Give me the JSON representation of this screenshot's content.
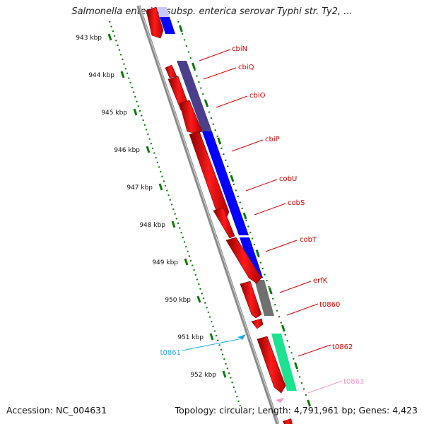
{
  "title": "Salmonella enterica subsp. enterica serovar Typhi str. Ty2, ...",
  "footer": {
    "accession": "Accession: NC_004631",
    "topology": "Topology: circular; Length: 4,791,961 bp; Genes: 4,423"
  },
  "ticks": [
    "943 kbp",
    "944 kbp",
    "945 kbp",
    "946 kbp",
    "947 kbp",
    "948 kbp",
    "949 kbp",
    "950 kbp",
    "951 kbp",
    "952 kbp"
  ],
  "genes": [
    {
      "name": "cbiN",
      "color": "#d40000"
    },
    {
      "name": "cbiQ",
      "color": "#d40000"
    },
    {
      "name": "cbiO",
      "color": "#d40000"
    },
    {
      "name": "cbiP",
      "color": "#d40000"
    },
    {
      "name": "cobU",
      "color": "#d40000"
    },
    {
      "name": "cobS",
      "color": "#d40000"
    },
    {
      "name": "cobT",
      "color": "#d40000"
    },
    {
      "name": "erfK",
      "color": "#d40000"
    },
    {
      "name": "t0860",
      "color": "#d40000"
    },
    {
      "name": "t0861",
      "color": "#29a8e0"
    },
    {
      "name": "t0862",
      "color": "#d40000"
    },
    {
      "name": "t0863",
      "color": "#f09ac8"
    }
  ],
  "colors": {
    "gene_red": "#ff0000",
    "blue": "#0000ff",
    "dark_slate": "#4a3f8a",
    "gray": "#707070",
    "green": "#1de28f",
    "tick_green": "#0a7a0a",
    "backbone": "#8a8a8a"
  }
}
